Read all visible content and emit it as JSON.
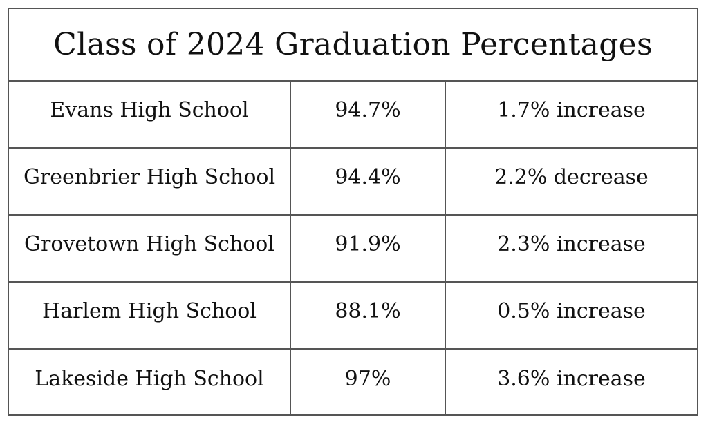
{
  "table": {
    "title": "Class of 2024 Graduation Percentages",
    "rows": [
      {
        "school": "Evans High School",
        "percentage": "94.7%",
        "change": "1.7% increase"
      },
      {
        "school": "Greenbrier High School",
        "percentage": "94.4%",
        "change": "2.2% decrease"
      },
      {
        "school": "Grovetown High School",
        "percentage": "91.9%",
        "change": "2.3% increase"
      },
      {
        "school": "Harlem High School",
        "percentage": "88.1%",
        "change": "0.5% increase"
      },
      {
        "school": "Lakeside High School",
        "percentage": "97%",
        "change": "3.6% increase"
      }
    ]
  }
}
